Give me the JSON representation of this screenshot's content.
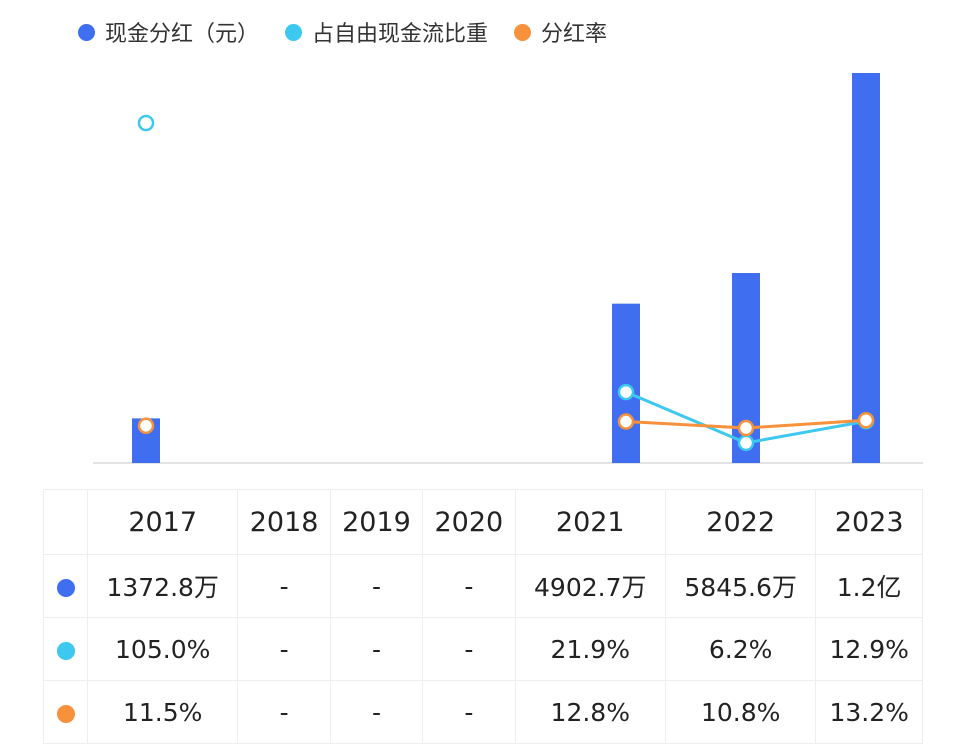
{
  "colors": {
    "dividend": "#3f6ff0",
    "fcf_ratio": "#3cc8ef",
    "payout": "#f7913b"
  },
  "legend": [
    {
      "label": "现金分红（元）",
      "color": "#3f6ff0"
    },
    {
      "label": "占自由现金流比重",
      "color": "#3cc8ef"
    },
    {
      "label": "分红率",
      "color": "#f7913b"
    }
  ],
  "chart_data": {
    "type": "bar",
    "categories": [
      "2017",
      "2018",
      "2019",
      "2020",
      "2021",
      "2022",
      "2023"
    ],
    "series": [
      {
        "name": "现金分红（元）",
        "type": "bar",
        "values": [
          13728000,
          null,
          null,
          null,
          49027000,
          58456000,
          120000000
        ]
      },
      {
        "name": "占自由现金流比重",
        "type": "line",
        "values": [
          105.0,
          null,
          null,
          null,
          21.9,
          6.2,
          12.9
        ]
      },
      {
        "name": "分红率",
        "type": "line",
        "values": [
          11.5,
          null,
          null,
          null,
          12.8,
          10.8,
          13.2
        ]
      }
    ],
    "grid": false,
    "legend_position": "top-left"
  },
  "table": {
    "headers": [
      "2017",
      "2018",
      "2019",
      "2020",
      "2021",
      "2022",
      "2023"
    ],
    "rows": [
      {
        "color": "#3f6ff0",
        "values": [
          "1372.8万",
          "-",
          "-",
          "-",
          "4902.7万",
          "5845.6万",
          "1.2亿"
        ]
      },
      {
        "color": "#3cc8ef",
        "values": [
          "105.0%",
          "-",
          "-",
          "-",
          "21.9%",
          "6.2%",
          "12.9%"
        ]
      },
      {
        "color": "#f7913b",
        "values": [
          "11.5%",
          "-",
          "-",
          "-",
          "12.8%",
          "10.8%",
          "13.2%"
        ]
      }
    ]
  }
}
